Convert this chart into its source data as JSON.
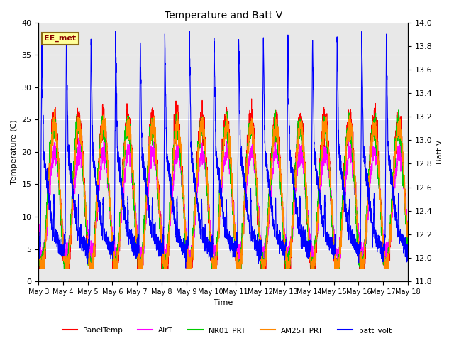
{
  "title": "Temperature and Batt V",
  "xlabel": "Time",
  "ylabel_left": "Temperature (C)",
  "ylabel_right": "Batt V",
  "ylim_left": [
    0,
    40
  ],
  "ylim_right": [
    11.8,
    14.0
  ],
  "annotation": "EE_met",
  "legend": [
    {
      "label": "PanelTemp",
      "color": "#ff0000"
    },
    {
      "label": "AirT",
      "color": "#ff00ff"
    },
    {
      "label": "NR01_PRT",
      "color": "#00cc00"
    },
    {
      "label": "AM25T_PRT",
      "color": "#ff8800"
    },
    {
      "label": "batt_volt",
      "color": "#0000ff"
    }
  ],
  "xtick_labels": [
    "May 3",
    "May 4",
    "May 5",
    "May 6",
    "May 7",
    "May 8",
    "May 9",
    "May 10",
    "May 11",
    "May 12",
    "May 13",
    "May 14",
    "May 15",
    "May 16",
    "May 17",
    "May 18"
  ],
  "background_color": "#e8e8e8",
  "grid_color": "#ffffff",
  "figsize": [
    6.4,
    4.8
  ],
  "dpi": 100
}
